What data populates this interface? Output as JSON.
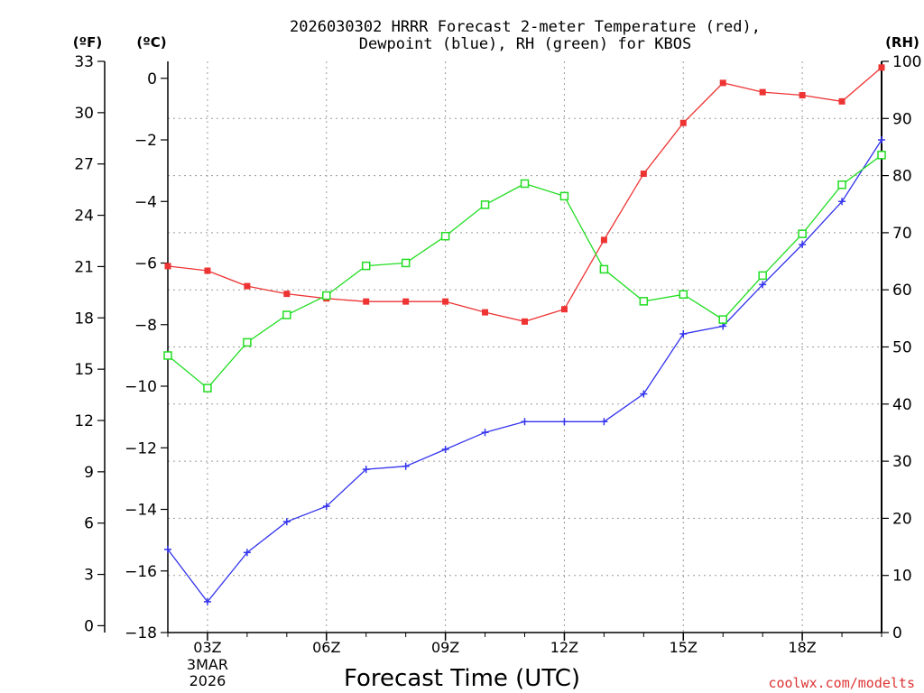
{
  "chart_data": {
    "type": "line",
    "title_line1": "2026030302 HRRR Forecast 2-meter Temperature (red),",
    "title_line2": "Dewpoint (blue), RH (green) for KBOS",
    "xlabel": "Forecast Time (UTC)",
    "axis_unit_f": "(ºF)",
    "axis_unit_c": "(ºC)",
    "axis_unit_rh": "(RH)",
    "x_hours": [
      2,
      3,
      4,
      5,
      6,
      7,
      8,
      9,
      10,
      11,
      12,
      13,
      14,
      15,
      16,
      17,
      18,
      19,
      20
    ],
    "x_range": [
      2,
      20
    ],
    "x_ticks": [
      {
        "hour": 3,
        "label": "03Z",
        "sub1": "3MAR",
        "sub2": "2026"
      },
      {
        "hour": 6,
        "label": "06Z"
      },
      {
        "hour": 9,
        "label": "09Z"
      },
      {
        "hour": 12,
        "label": "12Z"
      },
      {
        "hour": 15,
        "label": "15Z"
      },
      {
        "hour": 18,
        "label": "18Z"
      }
    ],
    "ylim_c": [
      -18,
      0.55
    ],
    "ylim_rh": [
      0,
      100
    ],
    "ylim_f": [
      -0.4,
      33
    ],
    "y_ticks_c": [
      "0",
      "−2",
      "−4",
      "−6",
      "−8",
      "−10",
      "−12",
      "−14",
      "−16",
      "−18"
    ],
    "y_ticks_f": [
      "33",
      "30",
      "27",
      "24",
      "21",
      "18",
      "15",
      "12",
      "9",
      "6",
      "3",
      "0"
    ],
    "y_ticks_rh": [
      "100",
      "90",
      "80",
      "70",
      "60",
      "50",
      "40",
      "30",
      "20",
      "10",
      "0"
    ],
    "series": [
      {
        "name": "Temperature (°C)",
        "color": "#ee3333",
        "marker": "filled-square",
        "axis": "c",
        "values": [
          -6.1,
          -6.25,
          -6.75,
          -7.0,
          -7.15,
          -7.25,
          -7.25,
          -7.25,
          -7.6,
          -7.9,
          -7.5,
          -5.25,
          -3.1,
          -1.45,
          -0.15,
          -0.45,
          -0.55,
          -0.75,
          0.35
        ]
      },
      {
        "name": "Dewpoint (°C)",
        "color": "#3333ee",
        "marker": "plus",
        "axis": "c",
        "values": [
          -15.3,
          -17.0,
          -15.4,
          -14.4,
          -13.9,
          -12.7,
          -12.6,
          -12.05,
          -11.5,
          -11.15,
          -11.15,
          -11.15,
          -10.25,
          -8.3,
          -8.05,
          -6.7,
          -5.4,
          -4.0,
          -2.0
        ]
      },
      {
        "name": "RH (%)",
        "color": "#22dd22",
        "marker": "open-square",
        "axis": "rh",
        "values": [
          48.5,
          42.8,
          50.8,
          55.6,
          59.0,
          64.2,
          64.7,
          69.4,
          74.9,
          78.6,
          76.4,
          63.6,
          58.0,
          59.2,
          54.8,
          62.5,
          69.8,
          78.4,
          83.6
        ]
      }
    ]
  },
  "watermark": "coolwx.com/modelts"
}
